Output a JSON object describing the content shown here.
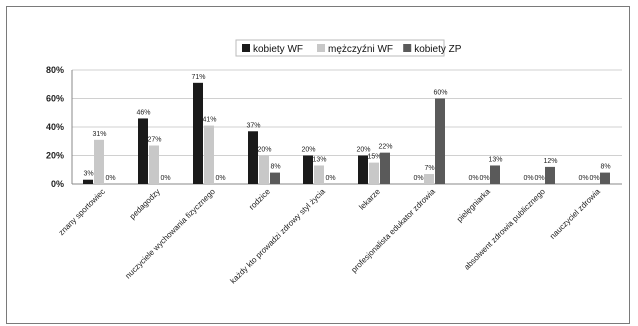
{
  "chart_data": {
    "type": "bar",
    "title": "",
    "xlabel": "",
    "ylabel": "",
    "ylim": [
      0,
      80
    ],
    "yticks": [
      "0%",
      "20%",
      "40%",
      "60%",
      "80%"
    ],
    "legend_position": "top-right",
    "grid": true,
    "categories": [
      "znany sportowiec",
      "pedagodzy",
      "nuczyciele wychowania fizycznego",
      "rodzice",
      "każdy kto prowadzi zdrowy styl życia",
      "lekarze",
      "profesjonalista edukator zdrowia",
      "pielęgniarka",
      "absolwent zdrowia publicznego",
      "nauczyciel zdrowia"
    ],
    "series": [
      {
        "name": "kobiety WF",
        "color": "#1a1a1a",
        "values": [
          3,
          46,
          71,
          37,
          20,
          20,
          0,
          0,
          0,
          0
        ],
        "labels": [
          "3%",
          "46%",
          "71%",
          "37%",
          "20%",
          "20%",
          "0%",
          "0%",
          "0%",
          "0%"
        ]
      },
      {
        "name": "mężczyźni WF",
        "color": "#c8c8c8",
        "values": [
          31,
          27,
          41,
          20,
          13,
          15,
          7,
          0,
          0,
          0
        ],
        "labels": [
          "31%",
          "27%",
          "41%",
          "20%",
          "13%",
          "15%",
          "7%",
          "0%",
          "0%",
          "0%"
        ]
      },
      {
        "name": "kobiety ZP",
        "color": "#5a5a5a",
        "values": [
          0,
          0,
          0,
          8,
          0,
          22,
          60,
          13,
          12,
          8
        ],
        "labels": [
          "0%",
          "0%",
          "0%",
          "8%",
          "0%",
          "22%",
          "60%",
          "13%",
          "12%",
          "8%"
        ]
      }
    ]
  }
}
